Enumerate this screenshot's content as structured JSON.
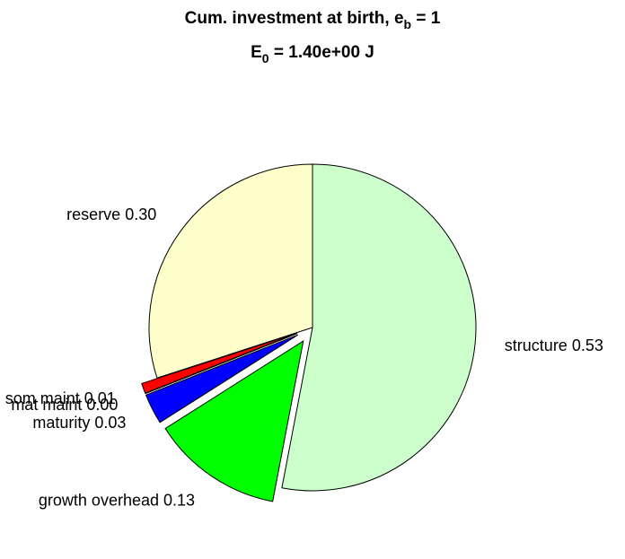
{
  "chart_data": {
    "type": "pie",
    "title": [
      "Cum. investment at birth, e",
      "b",
      " = 1"
    ],
    "subtitle": [
      "E",
      "0",
      " = 1.40e+00 J"
    ],
    "categories": [
      "structure",
      "growth overhead",
      "maturity",
      "mat maint",
      "som maint",
      "reserve"
    ],
    "values": [
      0.53,
      0.13,
      0.03,
      0.0,
      0.01,
      0.3
    ],
    "value_labels": [
      "0.53",
      "0.13",
      "0.03",
      "0.00",
      "0.01",
      "0.30"
    ],
    "colors": [
      "#ccffcc",
      "#00ff00",
      "#0000ff",
      "#ff00ff",
      "#ff0000",
      "#ffffcc"
    ],
    "explode": [
      false,
      true,
      true,
      true,
      true,
      false
    ]
  }
}
